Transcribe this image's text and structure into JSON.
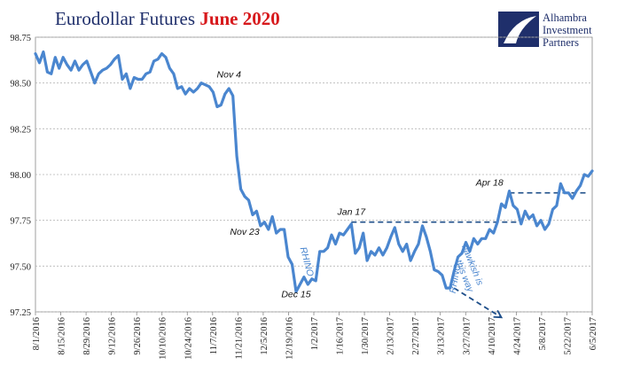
{
  "chart_data": {
    "type": "line",
    "title_part1": "Eurodollar Futures ",
    "title_part2": "June 2020",
    "xlabel": "",
    "ylabel": "",
    "ylim": [
      97.25,
      98.75
    ],
    "yticks": [
      "98.75",
      "98.50",
      "98.25",
      "98.00",
      "97.75",
      "97.50",
      "97.25"
    ],
    "grid": "horizontal",
    "xticks": [
      "8/1/2016",
      "8/15/2016",
      "8/29/2016",
      "9/12/2016",
      "9/26/2016",
      "10/10/2016",
      "10/24/2016",
      "11/7/2016",
      "11/21/2016",
      "12/5/2016",
      "12/19/2016",
      "1/2/2017",
      "1/16/2017",
      "1/30/2017",
      "2/13/2017",
      "2/27/2017",
      "3/13/2017",
      "3/27/2017",
      "4/10/2017",
      "4/24/2017",
      "5/8/2017",
      "5/22/2017",
      "6/5/2017"
    ],
    "series": [
      {
        "color": "#4a86cf",
        "points": [
          [
            0,
            98.66
          ],
          [
            1,
            98.61
          ],
          [
            2,
            98.67
          ],
          [
            3,
            98.56
          ],
          [
            4,
            98.55
          ],
          [
            5,
            98.64
          ],
          [
            6,
            98.58
          ],
          [
            7,
            98.64
          ],
          [
            8,
            98.6
          ],
          [
            9,
            98.57
          ],
          [
            10,
            98.62
          ],
          [
            11,
            98.57
          ],
          [
            12,
            98.6
          ],
          [
            13,
            98.62
          ],
          [
            14,
            98.56
          ],
          [
            15,
            98.5
          ],
          [
            16,
            98.55
          ],
          [
            17,
            98.57
          ],
          [
            18,
            98.58
          ],
          [
            19,
            98.6
          ],
          [
            20,
            98.63
          ],
          [
            21,
            98.65
          ],
          [
            22,
            98.52
          ],
          [
            23,
            98.55
          ],
          [
            24,
            98.47
          ],
          [
            25,
            98.53
          ],
          [
            26,
            98.52
          ],
          [
            27,
            98.52
          ],
          [
            28,
            98.55
          ],
          [
            29,
            98.56
          ],
          [
            30,
            98.62
          ],
          [
            31,
            98.63
          ],
          [
            32,
            98.66
          ],
          [
            33,
            98.64
          ],
          [
            34,
            98.58
          ],
          [
            35,
            98.55
          ],
          [
            36,
            98.47
          ],
          [
            37,
            98.48
          ],
          [
            38,
            98.44
          ],
          [
            39,
            98.47
          ],
          [
            40,
            98.45
          ],
          [
            41,
            98.47
          ],
          [
            42,
            98.5
          ],
          [
            43,
            98.49
          ],
          [
            44,
            98.48
          ],
          [
            45,
            98.45
          ],
          [
            46,
            98.37
          ],
          [
            47,
            98.38
          ],
          [
            48,
            98.44
          ],
          [
            49,
            98.47
          ],
          [
            50,
            98.43
          ],
          [
            51,
            98.1
          ],
          [
            52,
            97.92
          ],
          [
            53,
            97.88
          ],
          [
            54,
            97.86
          ],
          [
            55,
            97.78
          ],
          [
            56,
            97.8
          ],
          [
            57,
            97.72
          ],
          [
            58,
            97.74
          ],
          [
            59,
            97.7
          ],
          [
            60,
            97.77
          ],
          [
            61,
            97.68
          ],
          [
            62,
            97.7
          ],
          [
            63,
            97.7
          ],
          [
            64,
            97.55
          ],
          [
            65,
            97.51
          ],
          [
            66,
            97.36
          ],
          [
            67,
            97.4
          ],
          [
            68,
            97.44
          ],
          [
            69,
            97.4
          ],
          [
            70,
            97.43
          ],
          [
            71,
            97.42
          ],
          [
            72,
            97.58
          ],
          [
            73,
            97.58
          ],
          [
            74,
            97.6
          ],
          [
            75,
            97.67
          ],
          [
            76,
            97.62
          ],
          [
            77,
            97.68
          ],
          [
            78,
            97.67
          ],
          [
            79,
            97.7
          ],
          [
            80,
            97.73
          ],
          [
            81,
            97.57
          ],
          [
            82,
            97.6
          ],
          [
            83,
            97.68
          ],
          [
            84,
            97.53
          ],
          [
            85,
            97.58
          ],
          [
            86,
            97.56
          ],
          [
            87,
            97.6
          ],
          [
            88,
            97.56
          ],
          [
            89,
            97.6
          ],
          [
            90,
            97.66
          ],
          [
            91,
            97.71
          ],
          [
            92,
            97.62
          ],
          [
            93,
            97.58
          ],
          [
            94,
            97.62
          ],
          [
            95,
            97.53
          ],
          [
            96,
            97.58
          ],
          [
            97,
            97.62
          ],
          [
            98,
            97.72
          ],
          [
            99,
            97.66
          ],
          [
            100,
            97.58
          ],
          [
            101,
            97.48
          ],
          [
            102,
            97.47
          ],
          [
            103,
            97.45
          ],
          [
            104,
            97.38
          ],
          [
            105,
            97.38
          ],
          [
            106,
            97.47
          ],
          [
            107,
            97.55
          ],
          [
            108,
            97.57
          ],
          [
            109,
            97.63
          ],
          [
            110,
            97.58
          ],
          [
            111,
            97.65
          ],
          [
            112,
            97.62
          ],
          [
            113,
            97.65
          ],
          [
            114,
            97.65
          ],
          [
            115,
            97.7
          ],
          [
            116,
            97.68
          ],
          [
            117,
            97.74
          ],
          [
            118,
            97.84
          ],
          [
            119,
            97.82
          ],
          [
            120,
            97.91
          ],
          [
            121,
            97.83
          ],
          [
            122,
            97.81
          ],
          [
            123,
            97.73
          ],
          [
            124,
            97.8
          ],
          [
            125,
            97.76
          ],
          [
            126,
            97.78
          ],
          [
            127,
            97.72
          ],
          [
            128,
            97.75
          ],
          [
            129,
            97.7
          ],
          [
            130,
            97.73
          ],
          [
            131,
            97.81
          ],
          [
            132,
            97.83
          ],
          [
            133,
            97.95
          ],
          [
            134,
            97.9
          ],
          [
            135,
            97.9
          ],
          [
            136,
            97.87
          ],
          [
            137,
            97.91
          ],
          [
            138,
            97.94
          ],
          [
            139,
            98.0
          ],
          [
            140,
            97.99
          ],
          [
            141,
            98.02
          ]
        ]
      }
    ],
    "reference_lines": [
      {
        "y": 97.74,
        "x_from": 80,
        "x_to": 122
      },
      {
        "y": 97.9,
        "x_from": 120,
        "x_to": 140
      }
    ],
    "arrow": {
      "from": [
        106,
        97.38
      ],
      "to": [
        118,
        97.22
      ]
    },
    "annotations": [
      {
        "text": "Nov 4",
        "x": 49,
        "y": 98.53
      },
      {
        "text": "Nov 23",
        "x": 53,
        "y": 97.67
      },
      {
        "text": "Dec 15",
        "x": 66,
        "y": 97.33
      },
      {
        "text": "Jan 17",
        "x": 80,
        "y": 97.78
      },
      {
        "text": "Apr 18",
        "x": 115,
        "y": 97.94
      }
    ],
    "blue_annotations": [
      {
        "text": "RHINO",
        "x": 68,
        "y": 97.52,
        "rotate": 75
      },
      {
        "text": "RHINO",
        "x": 107,
        "y": 97.43,
        "rotate": -80
      },
      {
        "text": "hawkish is",
        "x": 110,
        "y": 97.5,
        "rotate": 68
      },
      {
        "text": "this way",
        "x": 108,
        "y": 97.44,
        "rotate": 68
      }
    ]
  },
  "logo": {
    "name": "alhambra-logo-icon",
    "line1": "Alhambra",
    "line2": "Investment",
    "line3": "Partners"
  }
}
